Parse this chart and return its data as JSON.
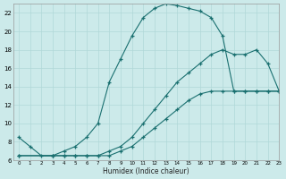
{
  "xlabel": "Humidex (Indice chaleur)",
  "bg_color": "#cceaea",
  "grid_color": "#b0d8d8",
  "line_color": "#1a7070",
  "xlim": [
    -0.5,
    23
  ],
  "ylim": [
    6,
    23
  ],
  "yticks": [
    6,
    8,
    10,
    12,
    14,
    16,
    18,
    20,
    22
  ],
  "xticks": [
    0,
    1,
    2,
    3,
    4,
    5,
    6,
    7,
    8,
    9,
    10,
    11,
    12,
    13,
    14,
    15,
    16,
    17,
    18,
    19,
    20,
    21,
    22,
    23
  ],
  "curve1_x": [
    0,
    1,
    2,
    3,
    4,
    5,
    6,
    7,
    8,
    9,
    10,
    11,
    12,
    13,
    14,
    15,
    16,
    17,
    18,
    19,
    20,
    21,
    22,
    23
  ],
  "curve1_y": [
    8.5,
    7.5,
    6.5,
    6.5,
    7.0,
    7.5,
    8.5,
    10.0,
    14.5,
    17.0,
    19.5,
    21.5,
    22.5,
    23.0,
    22.8,
    22.5,
    22.2,
    21.5,
    19.5,
    13.5,
    13.5,
    13.5,
    13.5,
    13.5
  ],
  "curve2_x": [
    0,
    3,
    4,
    5,
    6,
    7,
    8,
    9,
    10,
    11,
    12,
    13,
    14,
    15,
    16,
    17,
    18,
    19,
    20,
    21,
    22,
    23
  ],
  "curve2_y": [
    6.5,
    6.5,
    6.5,
    6.5,
    6.5,
    6.5,
    7.0,
    7.5,
    8.5,
    10.0,
    11.5,
    13.0,
    14.5,
    15.5,
    16.5,
    17.5,
    18.0,
    17.5,
    17.5,
    18.0,
    16.5,
    13.5
  ],
  "curve3_x": [
    0,
    3,
    4,
    5,
    6,
    7,
    8,
    9,
    10,
    11,
    12,
    13,
    14,
    15,
    16,
    17,
    18,
    19,
    20,
    21,
    22,
    23
  ],
  "curve3_y": [
    6.5,
    6.5,
    6.5,
    6.5,
    6.5,
    6.5,
    6.5,
    7.0,
    7.5,
    8.5,
    9.5,
    10.5,
    11.5,
    12.5,
    13.2,
    13.5,
    13.5,
    13.5,
    13.5,
    13.5,
    13.5,
    13.5
  ]
}
